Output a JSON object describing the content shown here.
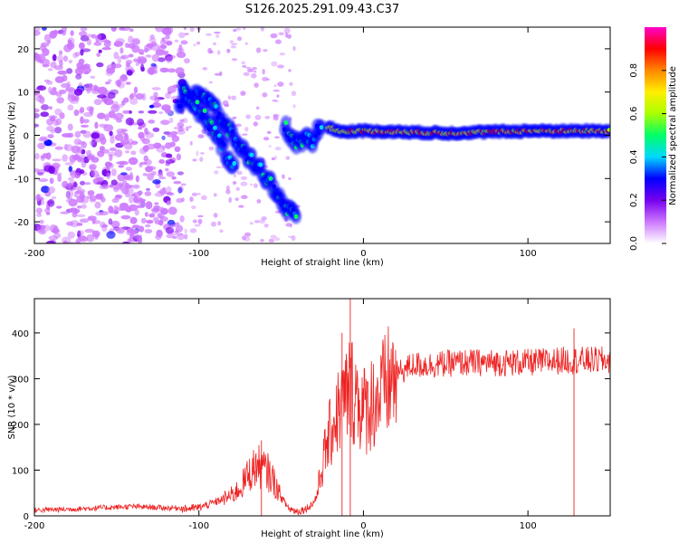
{
  "title": "S126.2025.291.09.43.C37",
  "chart_data": [
    {
      "type": "heatmap",
      "xlabel": "Height of straight line (km)",
      "ylabel": "Frequency (Hz)",
      "xlim": [
        -200,
        150
      ],
      "ylim": [
        -25,
        25
      ],
      "xticks": [
        -200,
        -100,
        0,
        100
      ],
      "yticks": [
        -20,
        -10,
        0,
        10,
        20
      ],
      "colorbar": {
        "label": "Normalized spectral amplitude",
        "range": [
          0,
          1
        ],
        "ticks": [
          "0.0",
          "0.2",
          "0.4",
          "0.6",
          "0.8"
        ],
        "colors": [
          "#ffffff",
          "#cc77ff",
          "#7700ee",
          "#0000ff",
          "#00d9ff",
          "#00ff66",
          "#aaff00",
          "#ffee00",
          "#ff8800",
          "#ff0000",
          "#ff00cc"
        ]
      },
      "noise_region": {
        "x": [
          -200,
          -110
        ],
        "y": [
          -25,
          25
        ],
        "amplitude": 0.15
      },
      "tracks": [
        {
          "name": "descending trace 1",
          "points": [
            [
              -112,
              8
            ],
            [
              -100,
              10
            ],
            [
              -90,
              6
            ],
            [
              -80,
              0
            ],
            [
              -70,
              -5
            ],
            [
              -62,
              -8
            ],
            [
              -55,
              -12
            ],
            [
              -48,
              -16
            ],
            [
              -40,
              -20
            ]
          ]
        },
        {
          "name": "descending trace 2",
          "points": [
            [
              -110,
              10
            ],
            [
              -100,
              6
            ],
            [
              -92,
              2
            ],
            [
              -85,
              -3
            ],
            [
              -78,
              -8
            ]
          ]
        },
        {
          "name": "cluster",
          "points": [
            [
              -48,
              2
            ],
            [
              -40,
              -2
            ],
            [
              -35,
              0
            ],
            [
              -30,
              -2
            ],
            [
              -28,
              2
            ],
            [
              -25,
              0
            ]
          ]
        },
        {
          "name": "main signal",
          "points": [
            [
              -22,
              2
            ],
            [
              -15,
              1
            ],
            [
              0,
              1
            ],
            [
              50,
              0.5
            ],
            [
              100,
              1
            ],
            [
              150,
              1
            ]
          ]
        }
      ]
    },
    {
      "type": "line",
      "xlabel": "Height of straight line (km)",
      "ylabel": "SNR (10 * v/v)",
      "xlim": [
        -200,
        150
      ],
      "ylim": [
        0,
        475
      ],
      "xticks": [
        -200,
        -100,
        0,
        100
      ],
      "yticks": [
        0,
        100,
        200,
        300,
        400
      ],
      "color": "#ee2222",
      "series": [
        {
          "name": "SNR",
          "x": [
            -200,
            -180,
            -160,
            -140,
            -120,
            -110,
            -100,
            -90,
            -80,
            -75,
            -70,
            -65,
            -62,
            -58,
            -55,
            -50,
            -45,
            -40,
            -35,
            -30,
            -28,
            -25,
            -22,
            -20,
            -18,
            -15,
            -12,
            -10,
            -8,
            -5,
            0,
            5,
            10,
            15,
            20,
            25,
            30,
            40,
            60,
            80,
            100,
            120,
            150
          ],
          "y": [
            10,
            12,
            15,
            18,
            15,
            15,
            18,
            30,
            45,
            60,
            90,
            110,
            105,
            95,
            80,
            40,
            15,
            10,
            15,
            30,
            50,
            110,
            160,
            180,
            210,
            230,
            250,
            265,
            280,
            270,
            230,
            250,
            260,
            290,
            310,
            320,
            330,
            330,
            335,
            335,
            335,
            340,
            340
          ]
        }
      ],
      "peaks": [
        {
          "x": -8,
          "y": 475
        },
        {
          "x": -13,
          "y": 400
        },
        {
          "x": -62,
          "y": 165
        },
        {
          "x": 128,
          "y": 410
        }
      ]
    }
  ]
}
